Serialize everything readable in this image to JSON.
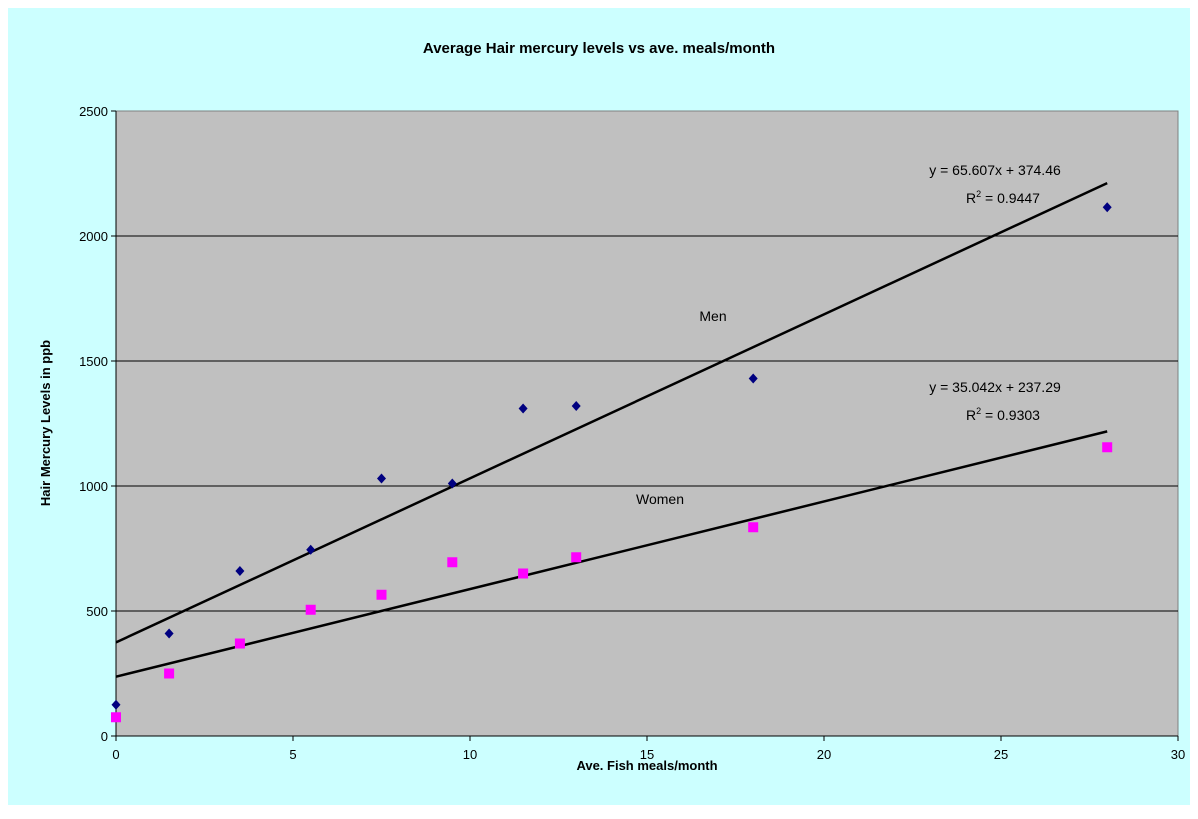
{
  "chart_data": {
    "type": "scatter",
    "title": "Average Hair mercury levels vs ave. meals/month",
    "xlabel": "Ave. Fish meals/month",
    "ylabel": "Hair Mercury Levels in ppb",
    "xlim": [
      0,
      30
    ],
    "ylim": [
      0,
      2500
    ],
    "xticks": [
      0,
      5,
      10,
      15,
      20,
      25,
      30
    ],
    "yticks": [
      0,
      500,
      1000,
      1500,
      2000,
      2500
    ],
    "grid": "horizontal",
    "legend": "none",
    "colors": {
      "plot_bg": "#c0c0c0",
      "chart_bg": "#ccffff",
      "men": "#000080",
      "women": "#ff00ff",
      "trend": "#000000"
    },
    "series": [
      {
        "name": "Men",
        "marker": "diamond",
        "x": [
          0,
          1.5,
          3.5,
          5.5,
          7.5,
          9.5,
          11.5,
          13,
          18,
          28
        ],
        "y": [
          125,
          410,
          660,
          745,
          1030,
          1010,
          1310,
          1320,
          1430,
          2115
        ],
        "trendline": {
          "slope": 65.607,
          "intercept": 374.46,
          "equation": "y = 65.607x + 374.46",
          "r2_prefix": "R",
          "r2_sup": "2",
          "r2_value": " = 0.9447"
        }
      },
      {
        "name": "Women",
        "marker": "square",
        "x": [
          0,
          1.5,
          3.5,
          5.5,
          7.5,
          9.5,
          11.5,
          13,
          18,
          28
        ],
        "y": [
          75,
          250,
          370,
          505,
          565,
          695,
          650,
          715,
          835,
          1155
        ],
        "trendline": {
          "slope": 35.042,
          "intercept": 237.29,
          "equation": "y = 35.042x + 237.29",
          "r2_prefix": "R",
          "r2_sup": "2",
          "r2_value": " = 0.9303"
        }
      }
    ]
  }
}
